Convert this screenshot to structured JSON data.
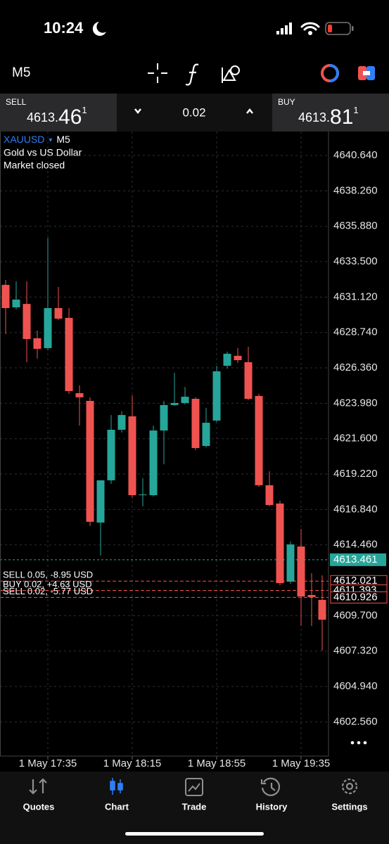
{
  "status_bar": {
    "time": "10:24"
  },
  "toolbar": {
    "timeframe": "M5"
  },
  "trade_panel": {
    "sell": {
      "label": "SELL",
      "price_parts": [
        "4613.",
        "46",
        "1"
      ]
    },
    "lot": "0.02",
    "buy": {
      "label": "BUY",
      "price_parts": [
        "4613.",
        "81",
        "1"
      ]
    }
  },
  "chart_data": {
    "type": "candlestick",
    "symbol": "XAUUSD",
    "timeframe": "M5",
    "description": "Gold vs US Dollar",
    "status": "Market closed",
    "x": [
      null,
      null,
      null,
      null,
      "1 May 17:35",
      null,
      null,
      null,
      null,
      null,
      null,
      null,
      "1 May 18:15",
      null,
      null,
      null,
      null,
      null,
      null,
      null,
      "1 May 18:55",
      null,
      null,
      null,
      null,
      null,
      null,
      null,
      "1 May 19:35",
      null,
      null
    ],
    "open": [
      4631.94,
      4630.43,
      4630.66,
      4628.35,
      4627.69,
      4630.38,
      4629.72,
      4624.66,
      4624.14,
      4615.96,
      4618.8,
      4622.2,
      4623.1,
      4617.8,
      4617.8,
      4622.15,
      4623.86,
      4624.0,
      4624.28,
      4621.11,
      4622.82,
      4626.5,
      4627.17,
      4626.74,
      4624.47,
      4618.47,
      4617.24,
      4611.99,
      4614.35,
      4611.09,
      4610.76
    ],
    "high": [
      4632.27,
      4632.18,
      4632.18,
      4628.87,
      4635.11,
      4631.8,
      4630.38,
      4625.18,
      4624.38,
      4618.8,
      4623.19,
      4623.43,
      4624.52,
      4618.94,
      4622.48,
      4624.14,
      4626.03,
      4625.08,
      4624.38,
      4623.67,
      4626.5,
      4627.45,
      4627.69,
      4627.78,
      4624.61,
      4619.41,
      4617.43,
      4614.68,
      4615.53,
      4612.56,
      4612.41
    ],
    "low": [
      4628.63,
      4630.29,
      4626.74,
      4626.98,
      4627.54,
      4629.57,
      4624.61,
      4622.48,
      4615.72,
      4613.74,
      4618.56,
      4622.01,
      4617.61,
      4617.05,
      4617.71,
      4619.88,
      4623.81,
      4623.9,
      4620.83,
      4621.02,
      4622.72,
      4626.31,
      4626.69,
      4624.19,
      4618.37,
      4617.05,
      4611.75,
      4611.84,
      4609.01,
      4609.01,
      4607.35
    ],
    "close": [
      4630.38,
      4630.95,
      4628.3,
      4627.64,
      4630.38,
      4629.67,
      4624.8,
      4624.38,
      4616.01,
      4618.8,
      4622.2,
      4623.19,
      4617.8,
      4617.85,
      4622.15,
      4623.86,
      4624.0,
      4624.42,
      4620.97,
      4622.67,
      4626.13,
      4627.31,
      4626.88,
      4624.28,
      4618.47,
      4617.14,
      4611.89,
      4614.49,
      4610.99,
      4610.95,
      4609.43
    ],
    "up_color": "#26a69a",
    "down_color": "#ef5350",
    "ylim": [
      4600.26,
      4642.25
    ],
    "yticks": [
      {
        "value": 4640.64,
        "label": "4640.640"
      },
      {
        "value": 4638.26,
        "label": "4638.260"
      },
      {
        "value": 4635.88,
        "label": "4635.880"
      },
      {
        "value": 4633.5,
        "label": "4633.500"
      },
      {
        "value": 4631.12,
        "label": "4631.120"
      },
      {
        "value": 4628.74,
        "label": "4628.740"
      },
      {
        "value": 4626.36,
        "label": "4626.360"
      },
      {
        "value": 4623.98,
        "label": "4623.980"
      },
      {
        "value": 4621.6,
        "label": "4621.600"
      },
      {
        "value": 4619.22,
        "label": "4619.220"
      },
      {
        "value": 4616.84,
        "label": "4616.840"
      },
      {
        "value": 4614.46,
        "label": "4614.460"
      },
      {
        "value": 4609.7,
        "label": "4609.700"
      },
      {
        "value": 4607.32,
        "label": "4607.320"
      },
      {
        "value": 4604.94,
        "label": "4604.940"
      },
      {
        "value": 4602.56,
        "label": "4602.560"
      }
    ],
    "grid": true,
    "bid_line": {
      "value": 4613.461,
      "color": "#26a69a"
    },
    "positions": [
      {
        "label": "SELL 0.05, -8.95 USD",
        "price": 4612.021,
        "color": "#ef5350"
      },
      {
        "label": "BUY 0.02, +4.63 USD",
        "price": 4611.393,
        "color": "#ef5350"
      },
      {
        "label": "SELL 0.02, -5.77 USD",
        "price": 4610.926,
        "color": "#ef5350"
      }
    ]
  },
  "nav": {
    "tabs": [
      {
        "label": "Quotes",
        "color": "#8e8e93"
      },
      {
        "label": "Chart",
        "color": "#2f7ff7"
      },
      {
        "label": "Trade",
        "color": "#8e8e93"
      },
      {
        "label": "History",
        "color": "#8e8e93"
      },
      {
        "label": "Settings",
        "color": "#8e8e93"
      }
    ]
  }
}
